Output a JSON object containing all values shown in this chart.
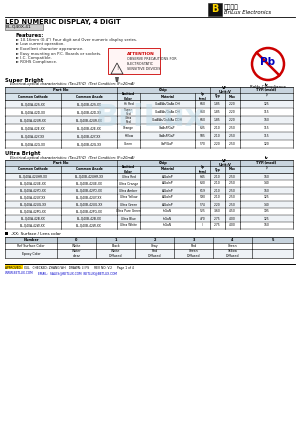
{
  "title": "LED NUMERIC DISPLAY, 4 DIGIT",
  "part_number": "BL-Q40X-41",
  "logo_text1": "百流光电",
  "logo_text2": "BriLux Electronics",
  "features": [
    "10.16mm (0.4\") Four digit and Over numeric display series.",
    "Low current operation.",
    "Excellent character appearance.",
    "Easy mounting on P.C. Boards or sockets.",
    "I.C. Compatible.",
    "ROHS Compliance."
  ],
  "super_bright_title": "Super Bright",
  "super_bright_subtitle": "Electrical-optical characteristics: (Ta=25℃)  (Test Condition: IF=20mA)",
  "sub_hdrs": [
    "Common Cathode",
    "Common Anode",
    "Emitted\nColor",
    "Material",
    "λp\n(nm)",
    "Typ",
    "Max",
    "TYP.(mcd)\n)"
  ],
  "sb_rows": [
    [
      "BL-Q40A-42S-XX",
      "BL-Q40B-42S-XX",
      "Hi Red",
      "GaAlAs/GaAs DH",
      "660",
      "1.85",
      "2.20",
      "125"
    ],
    [
      "BL-Q40A-42D-XX",
      "BL-Q40B-42D-XX",
      "Super\nRed",
      "GaAlAs/GaAs DH",
      "660",
      "1.85",
      "2.20",
      "115"
    ],
    [
      "BL-Q40A-42UR-XX",
      "BL-Q40B-42UR-XX",
      "Ultra\nRed",
      "GaAlAs/GaAlAs DDH",
      "660",
      "1.85",
      "2.20",
      "160"
    ],
    [
      "BL-Q40A-42E-XX",
      "BL-Q40B-42E-XX",
      "Orange",
      "GaAsP/GaP",
      "635",
      "2.10",
      "2.50",
      "115"
    ],
    [
      "BL-Q40A-42Y-XX",
      "BL-Q40B-42Y-XX",
      "Yellow",
      "GaAsP/GaP",
      "585",
      "2.10",
      "2.50",
      "115"
    ],
    [
      "BL-Q40A-42G-XX",
      "BL-Q40B-42G-XX",
      "Green",
      "GaP/GaP",
      "570",
      "2.20",
      "2.50",
      "120"
    ]
  ],
  "ultra_bright_title": "Ultra Bright",
  "ultra_bright_subtitle": "Electrical-optical characteristics: (Ta=25℃)  (Test Condition: IF=20mA)",
  "ub_rows": [
    [
      "BL-Q40A-42UHR-XX",
      "BL-Q40B-42UHR-XX",
      "Ultra Red",
      "AlGaInP",
      "645",
      "2.10",
      "2.50",
      "160"
    ],
    [
      "BL-Q40A-42UE-XX",
      "BL-Q40B-42UE-XX",
      "Ultra Orange",
      "AlGaInP",
      "630",
      "2.10",
      "2.50",
      "140"
    ],
    [
      "BL-Q40A-42YO-XX",
      "BL-Q40B-42YO-XX",
      "Ultra Amber",
      "AlGaInP",
      "619",
      "2.10",
      "2.50",
      "160"
    ],
    [
      "BL-Q40A-42UY-XX",
      "BL-Q40B-42UY-XX",
      "Ultra Yellow",
      "AlGaInP",
      "590",
      "2.10",
      "2.50",
      "125"
    ],
    [
      "BL-Q40A-42UG-XX",
      "BL-Q40B-42UG-XX",
      "Ultra Green",
      "AlGaInP",
      "574",
      "2.20",
      "2.50",
      "140"
    ],
    [
      "BL-Q40A-42PG-XX",
      "BL-Q40B-42PG-XX",
      "Ultra Pure Green",
      "InGaN",
      "525",
      "3.60",
      "4.50",
      "195"
    ],
    [
      "BL-Q40A-42B-XX",
      "BL-Q40B-42B-XX",
      "Ultra Blue",
      "InGaN",
      "470",
      "2.75",
      "4.00",
      "125"
    ],
    [
      "BL-Q40A-42W-XX",
      "BL-Q40B-42W-XX",
      "Ultra White",
      "InGaN",
      "/",
      "2.75",
      "4.00",
      "160"
    ]
  ],
  "suffix_title": "-XX: Surface / Lens color",
  "suffix_headers": [
    "Number",
    "0",
    "1",
    "2",
    "3",
    "4",
    "5"
  ],
  "suffix_row1": [
    "Ref Surface Color",
    "White",
    "Black",
    "Gray",
    "Red",
    "Green",
    ""
  ],
  "suffix_row2": [
    "Epoxy Color",
    "Water\nclear",
    "White\nDiffused",
    "Red\nDiffused",
    "Green\nDiffused",
    "Yellow\nDiffused",
    ""
  ],
  "footer_left": "APPROVED:  XUL   CHECKED: ZHANG WH   DRAWN: LI FS     REV NO: V.2     Page 1 of 4",
  "footer_url": "WWW.BETLUX.COM",
  "footer_email": "EMAIL:  SALES@BETLUX.COM  BETLUX@BETLUX.COM",
  "bg_color": "#ffffff",
  "hdr_bg1": "#c8d4de",
  "hdr_bg2": "#d8e4ec",
  "row_alt": "#eef2f6"
}
